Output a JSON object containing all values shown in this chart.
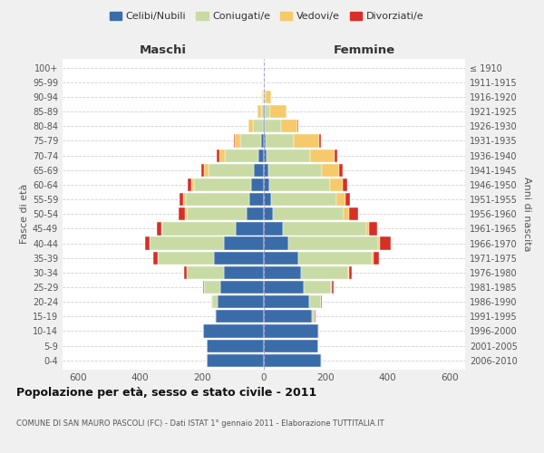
{
  "age_groups": [
    "0-4",
    "5-9",
    "10-14",
    "15-19",
    "20-24",
    "25-29",
    "30-34",
    "35-39",
    "40-44",
    "45-49",
    "50-54",
    "55-59",
    "60-64",
    "65-69",
    "70-74",
    "75-79",
    "80-84",
    "85-89",
    "90-94",
    "95-99",
    "100+"
  ],
  "birth_years": [
    "2006-2010",
    "2001-2005",
    "1996-2000",
    "1991-1995",
    "1986-1990",
    "1981-1985",
    "1976-1980",
    "1971-1975",
    "1966-1970",
    "1961-1965",
    "1956-1960",
    "1951-1955",
    "1946-1950",
    "1941-1945",
    "1936-1940",
    "1931-1935",
    "1926-1930",
    "1921-1925",
    "1916-1920",
    "1911-1915",
    "≤ 1910"
  ],
  "colors": {
    "celibe": "#3b6caa",
    "coniugato": "#c8dba4",
    "vedovo": "#f6c96a",
    "divorziato": "#d62f27"
  },
  "males": {
    "celibe": [
      185,
      185,
      195,
      155,
      150,
      140,
      130,
      160,
      130,
      90,
      55,
      48,
      42,
      32,
      18,
      8,
      4,
      2,
      1,
      0,
      0
    ],
    "coniugato": [
      0,
      0,
      0,
      2,
      18,
      52,
      118,
      182,
      238,
      238,
      195,
      205,
      183,
      147,
      108,
      68,
      32,
      8,
      2,
      0,
      0
    ],
    "vedovo": [
      0,
      0,
      0,
      0,
      1,
      1,
      1,
      2,
      2,
      3,
      4,
      7,
      9,
      14,
      18,
      17,
      14,
      10,
      3,
      0,
      0
    ],
    "divorziato": [
      0,
      0,
      0,
      1,
      2,
      4,
      8,
      12,
      15,
      14,
      20,
      12,
      12,
      10,
      8,
      3,
      0,
      0,
      0,
      0,
      0
    ]
  },
  "females": {
    "celibe": [
      185,
      175,
      175,
      155,
      145,
      130,
      120,
      110,
      80,
      62,
      28,
      23,
      18,
      14,
      8,
      6,
      3,
      2,
      1,
      1,
      0
    ],
    "coniugata": [
      2,
      2,
      3,
      10,
      38,
      88,
      152,
      238,
      288,
      268,
      230,
      212,
      196,
      172,
      142,
      92,
      52,
      18,
      4,
      1,
      0
    ],
    "vedova": [
      0,
      0,
      0,
      0,
      1,
      2,
      3,
      5,
      8,
      10,
      18,
      28,
      42,
      58,
      78,
      82,
      52,
      52,
      18,
      2,
      0
    ],
    "divorziata": [
      0,
      0,
      0,
      1,
      2,
      5,
      10,
      20,
      35,
      25,
      28,
      14,
      14,
      10,
      8,
      5,
      3,
      0,
      0,
      0,
      0
    ]
  },
  "title": "Popolazione per età, sesso e stato civile - 2011",
  "subtitle": "COMUNE DI SAN MAURO PASCOLI (FC) - Dati ISTAT 1° gennaio 2011 - Elaborazione TUTTITALIA.IT",
  "ylabel_left": "Fasce di età",
  "ylabel_right": "Anni di nascita",
  "xlabel_left": "Maschi",
  "xlabel_right": "Femmine",
  "xlim": 650,
  "legend_labels": [
    "Celibi/Nubili",
    "Coniugati/e",
    "Vedovi/e",
    "Divorziati/e"
  ],
  "bg_color": "#f0f0f0",
  "plot_bg": "#ffffff",
  "grid_color": "#cccccc"
}
